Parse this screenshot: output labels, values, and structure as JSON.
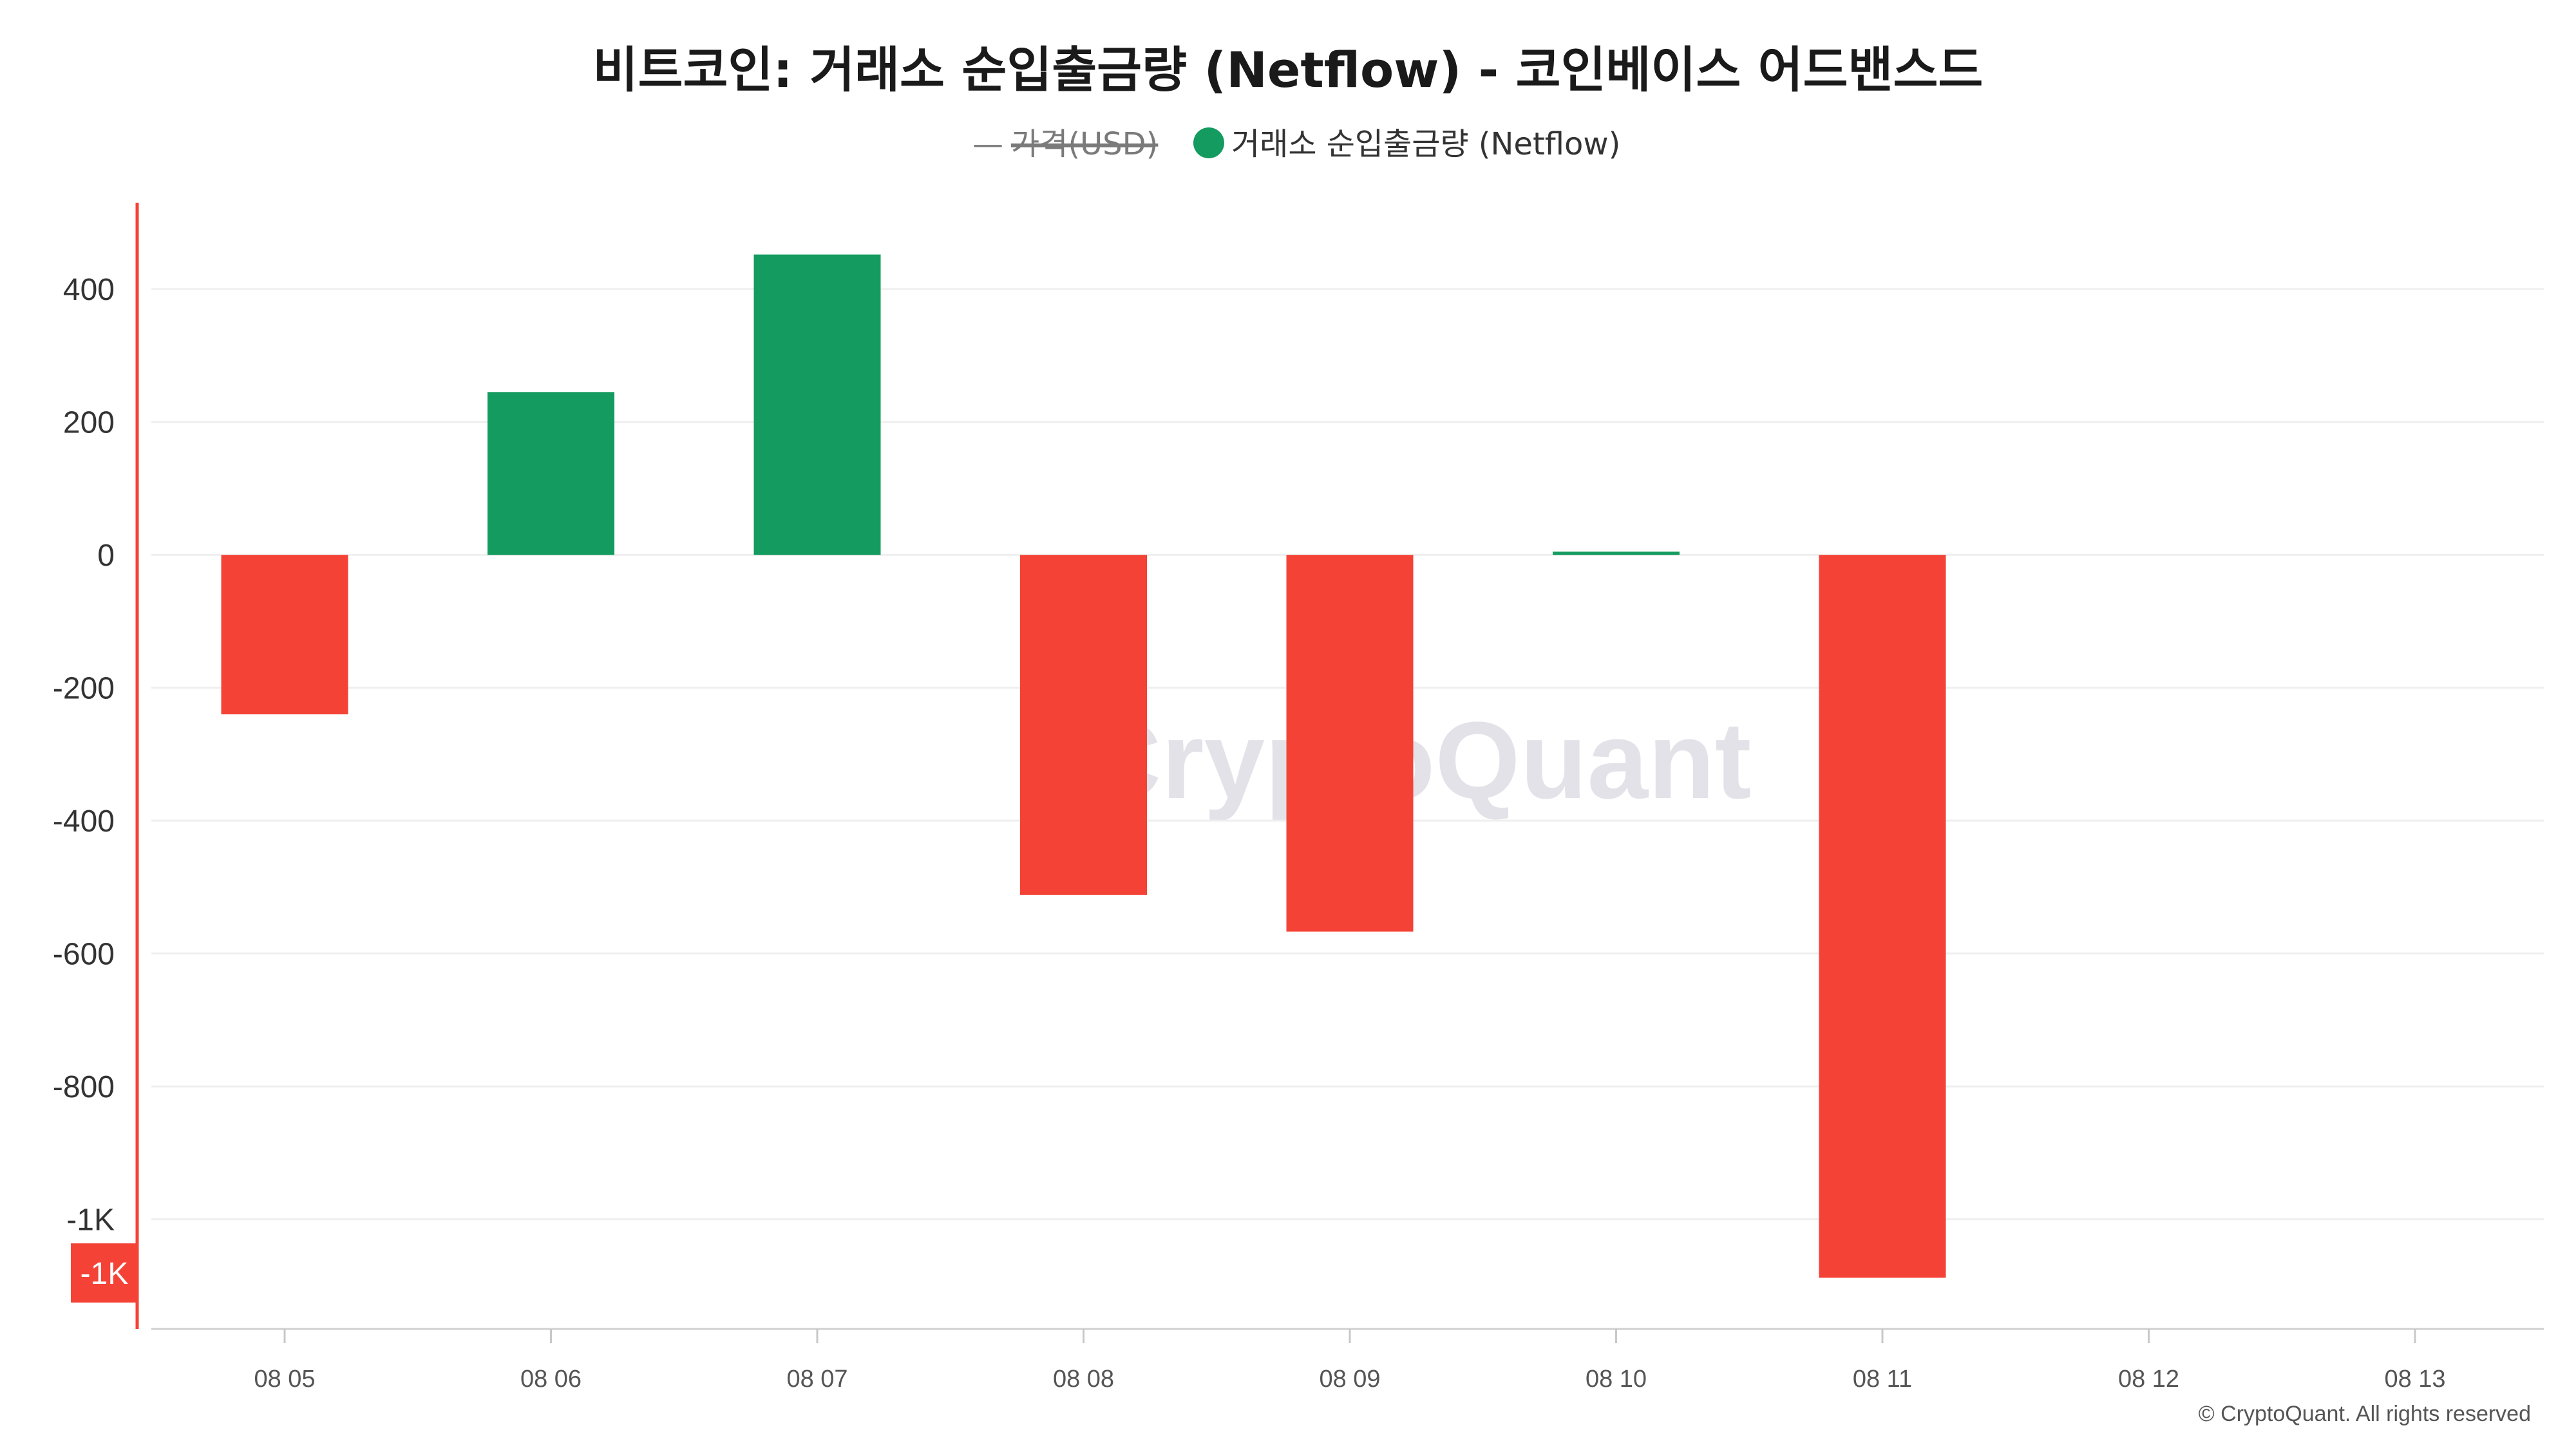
{
  "chart_data": {
    "type": "bar",
    "title": "비트코인: 거래소 순입출금량 (Netflow) - 코인베이스 어드밴스드",
    "categories": [
      "08 05",
      "08 06",
      "08 07",
      "08 08",
      "08 09",
      "08 10",
      "08 11",
      "08 12",
      "08 13"
    ],
    "series": [
      {
        "name": "거래소 순입출금량 (Netflow)",
        "values": [
          -240,
          245,
          452,
          -512,
          -567,
          3,
          -1088,
          null,
          null
        ]
      }
    ],
    "hidden_series": [
      {
        "name": "가격(USD)",
        "visible": false
      }
    ],
    "ylim": [
      -1165,
      530
    ],
    "yticks": [
      400,
      200,
      0,
      -200,
      -400,
      -600,
      -800,
      -1000
    ],
    "ytick_labels": [
      "400",
      "200",
      "0",
      "-200",
      "-400",
      "-600",
      "-800",
      "-1K"
    ],
    "current_value_label": "-1K",
    "grid": true,
    "legend_position": "top-center",
    "colors": {
      "positive": "#149b5f",
      "negative": "#f44336",
      "axis_accent": "#f44336",
      "grid": "#efefef"
    }
  },
  "legend": {
    "price_dash": "—",
    "price_label": "가격(USD)",
    "netflow_label": "거래소 순입출금량 (Netflow)"
  },
  "watermark": "CryptoQuant",
  "footer": "© CryptoQuant. All rights reserved"
}
